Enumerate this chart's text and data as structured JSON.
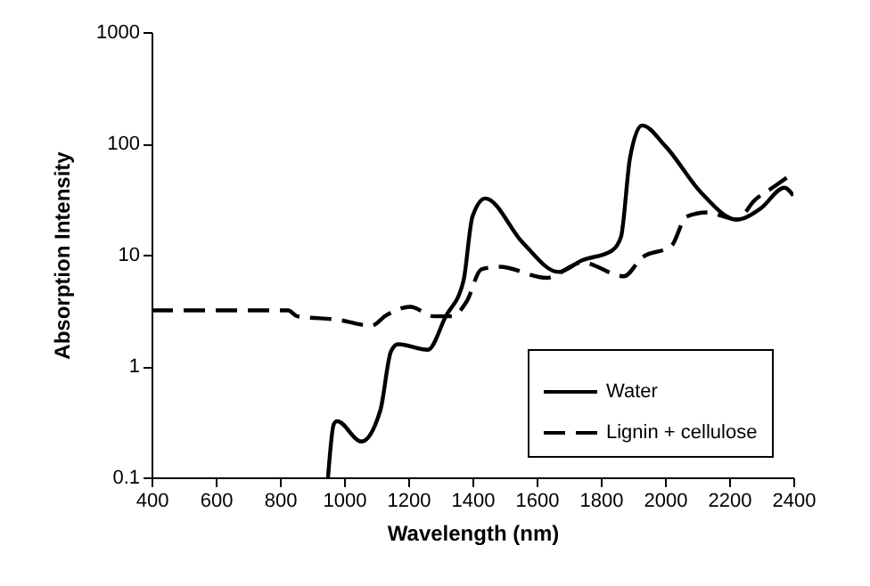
{
  "chart_data": {
    "type": "line",
    "xlabel": "Wavelength (nm)",
    "ylabel": "Absorption Intensity",
    "xlim": [
      400,
      2400
    ],
    "xticks": [
      400,
      600,
      800,
      1000,
      1200,
      1400,
      1600,
      1800,
      2000,
      2200,
      2400
    ],
    "ylim": [
      0.1,
      1000
    ],
    "yticks": [
      0.1,
      1,
      10,
      100,
      1000
    ],
    "log": "y",
    "legend": "bottom right",
    "series": [
      {
        "name": "Water",
        "color": "#000000",
        "line_style": "solid",
        "x": [
          950,
          968,
          978,
          1054,
          1113,
          1146,
          1168,
          1261,
          1317,
          1372,
          1400,
          1440,
          1557,
          1668,
          1742,
          1835,
          1863,
          1891,
          1928,
          2002,
          2113,
          2224,
          2298,
          2372,
          2400
        ],
        "values": [
          0.1,
          0.3,
          0.32,
          0.21,
          0.4,
          1.35,
          1.57,
          1.4,
          2.8,
          5.8,
          22,
          32,
          12.8,
          7,
          8.9,
          10.9,
          14.5,
          74,
          145,
          94,
          36,
          20.7,
          26,
          40,
          34
        ]
      },
      {
        "name": "Lignin + cellulose",
        "color": "#000000",
        "line_style": "dashed",
        "x": [
          400,
          826,
          854,
          983,
          1085,
          1131,
          1206,
          1280,
          1335,
          1382,
          1428,
          1483,
          1631,
          1742,
          1872,
          1928,
          2020,
          2067,
          2131,
          2224,
          2280,
          2335,
          2400
        ],
        "values": [
          3.16,
          3.16,
          2.8,
          2.6,
          2.3,
          2.85,
          3.4,
          2.8,
          2.8,
          3.8,
          7.4,
          7.8,
          6.2,
          8.5,
          6.4,
          9.4,
          12,
          22,
          24,
          20.7,
          31,
          40,
          54
        ]
      }
    ]
  }
}
